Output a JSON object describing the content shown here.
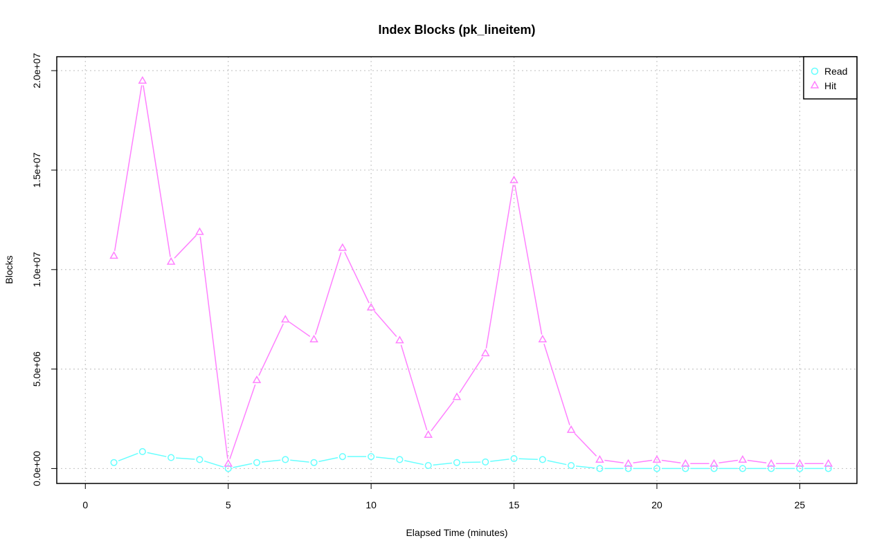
{
  "chart_data": {
    "type": "line",
    "title": "Index Blocks (pk_lineitem)",
    "xlabel": "Elapsed Time (minutes)",
    "ylabel": "Blocks",
    "xlim": [
      -1,
      27
    ],
    "ylim": [
      -750000,
      20700000
    ],
    "x_ticks": [
      0,
      5,
      10,
      15,
      20,
      25
    ],
    "x_tick_labels": [
      "0",
      "5",
      "10",
      "15",
      "20",
      "25"
    ],
    "y_ticks": [
      0,
      5000000,
      10000000,
      15000000,
      20000000
    ],
    "y_tick_labels": [
      "0.0e+00",
      "5.0e+06",
      "1.0e+07",
      "1.5e+07",
      "2.0e+07"
    ],
    "grid": true,
    "legend_position": "top-right",
    "x": [
      1,
      2,
      3,
      4,
      5,
      6,
      7,
      8,
      9,
      10,
      11,
      12,
      13,
      14,
      15,
      16,
      17,
      18,
      19,
      20,
      21,
      22,
      23,
      24,
      25,
      26
    ],
    "series": [
      {
        "name": "Read",
        "color": "#66ffff",
        "marker": "circle",
        "values": [
          300000,
          850000,
          550000,
          450000,
          0,
          300000,
          450000,
          300000,
          600000,
          600000,
          450000,
          150000,
          300000,
          330000,
          500000,
          450000,
          150000,
          0,
          0,
          0,
          0,
          0,
          0,
          0,
          0,
          0
        ]
      },
      {
        "name": "Hit",
        "color": "#ff80ff",
        "marker": "triangle",
        "values": [
          10700000,
          19500000,
          10400000,
          11900000,
          250000,
          4450000,
          7500000,
          6500000,
          11100000,
          8100000,
          6450000,
          1700000,
          3600000,
          5800000,
          14500000,
          6500000,
          1950000,
          450000,
          250000,
          450000,
          250000,
          250000,
          450000,
          250000,
          250000,
          250000
        ]
      }
    ]
  }
}
